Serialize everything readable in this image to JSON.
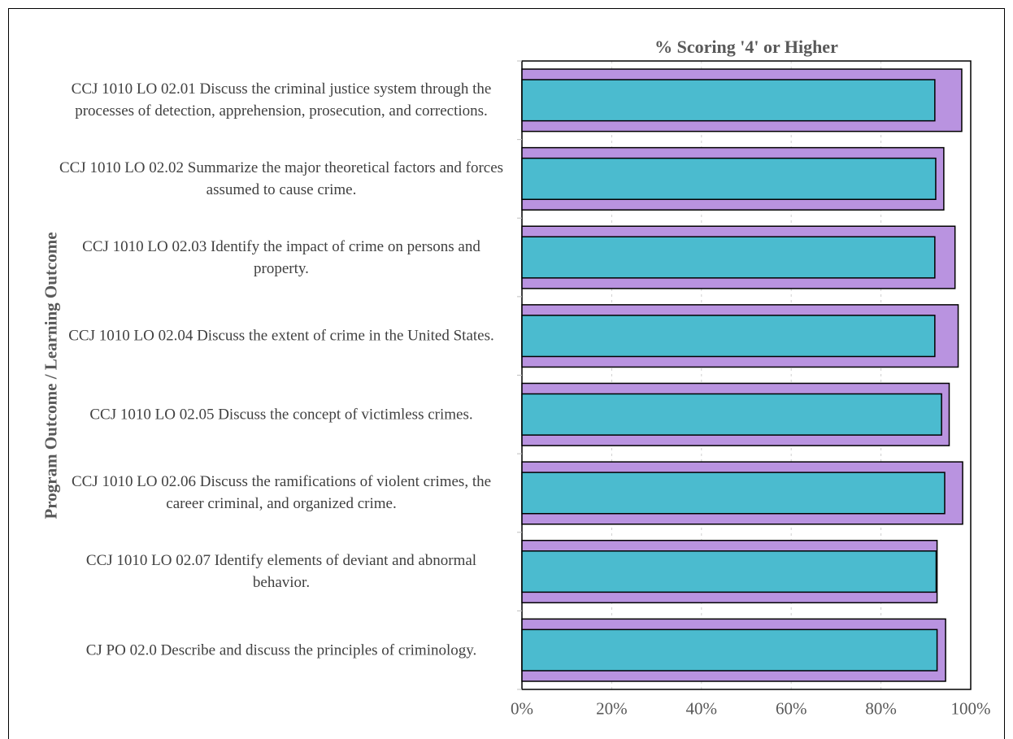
{
  "chart_data": {
    "type": "bar",
    "orientation": "horizontal",
    "title": "% Scoring '4' or Higher",
    "ylabel": "Program Outcome / Learning Outcome",
    "xlabel": "",
    "xlim": [
      0,
      1
    ],
    "x_tick_labels": [
      "0%",
      "20%",
      "40%",
      "60%",
      "80%",
      "100%"
    ],
    "categories": [
      "CCJ 1010 LO 02.01 Discuss the criminal justice system through the processes of detection, apprehension, prosecution, and corrections.",
      "CCJ 1010 LO 02.02 Summarize the major theoretical factors and forces assumed to cause crime.",
      "CCJ 1010 LO 02.03 Identify the impact of crime on persons and property.",
      "CCJ 1010 LO 02.04 Discuss the extent of crime in the United States.",
      "CCJ 1010 LO 02.05 Discuss the concept of victimless crimes.",
      "CCJ 1010 LO 02.06 Discuss the ramifications of violent crimes, the career criminal, and organized crime.",
      "CCJ 1010 LO 02.07 Identify elements of deviant and abnormal behavior.",
      "CJ PO 02.0 Describe and discuss the principles of criminology."
    ],
    "series": [
      {
        "color": "#b993e0",
        "values": [
          0.98,
          0.94,
          0.965,
          0.972,
          0.952,
          0.982,
          0.925,
          0.944
        ]
      },
      {
        "color": "#4bbbcf",
        "values": [
          0.92,
          0.922,
          0.92,
          0.92,
          0.935,
          0.942,
          0.923,
          0.925
        ]
      }
    ],
    "grid": true,
    "legend": "none"
  }
}
